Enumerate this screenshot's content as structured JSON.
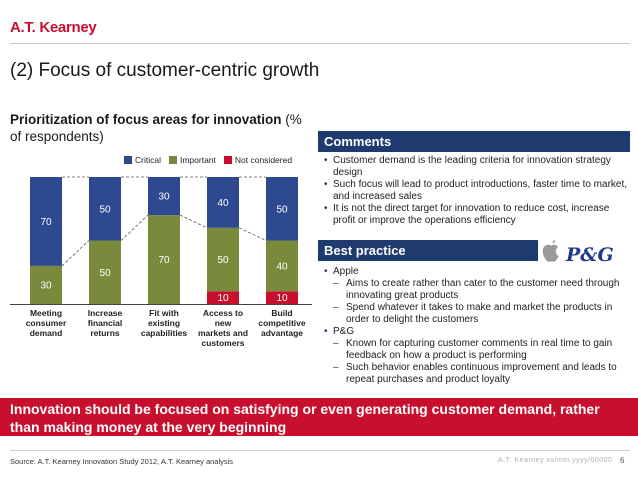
{
  "logo": {
    "text": "A.T. Kearney"
  },
  "title": "(2) Focus of customer-centric growth",
  "subtitle_bold": "Prioritization of focus areas for innovation",
  "subtitle_rest": " (% of respondents)",
  "legend": [
    {
      "label": "Critical",
      "color": "#2e4990"
    },
    {
      "label": "Important",
      "color": "#7a8a3c"
    },
    {
      "label": "Not considered",
      "color": "#c8102e"
    }
  ],
  "chart_data": {
    "type": "bar",
    "stacked": true,
    "categories": [
      [
        "Meeting",
        "consumer",
        "demand"
      ],
      [
        "Increase",
        "financial",
        "returns"
      ],
      [
        "Fit with",
        "existing",
        "capabilities"
      ],
      [
        "Access to",
        "new",
        "markets and",
        "customers"
      ],
      [
        "Build",
        "competitive",
        "advantage"
      ]
    ],
    "series": [
      {
        "name": "Not considered",
        "color": "#c8102e",
        "values": [
          0,
          0,
          0,
          10,
          10
        ]
      },
      {
        "name": "Important",
        "color": "#7a8a3c",
        "values": [
          30,
          50,
          70,
          50,
          40
        ]
      },
      {
        "name": "Critical",
        "color": "#2e4990",
        "values": [
          70,
          50,
          30,
          40,
          50
        ]
      }
    ],
    "ylim": [
      0,
      100
    ]
  },
  "comments": {
    "header": "Comments",
    "items": [
      "Customer demand is the leading criteria for innovation strategy design",
      "Such focus will lead to product introductions, faster time to market, and increased sales",
      "It is not the direct target for innovation to reduce cost, increase profit or improve the operations efficiency"
    ]
  },
  "best_practice": {
    "header": "Best practice",
    "logo_text": "P&G",
    "apple_label": "Apple",
    "apple_items": [
      "Aims to create rather than cater to the customer need through innovating great products",
      "Spend whatever it takes to make and market the products in order to delight the customers"
    ],
    "pg_label": "P&G",
    "pg_items": [
      "Known for capturing customer comments in real time to gain feedback on how a product is performing",
      "Such behavior enables continuous improvement and leads to repeat purchases and product loyalty"
    ]
  },
  "banner": "Innovation should be focused on satisfying or even generating customer demand, rather than making money at the very beginning",
  "source": "Source: A.T. Kearney Innovation Study 2012, A.T. Kearney analysis",
  "footer": "A.T. Kearney xx/mm.yyyy/00000",
  "page_number": "6",
  "icons": {
    "apple": "apple-logo-icon"
  }
}
